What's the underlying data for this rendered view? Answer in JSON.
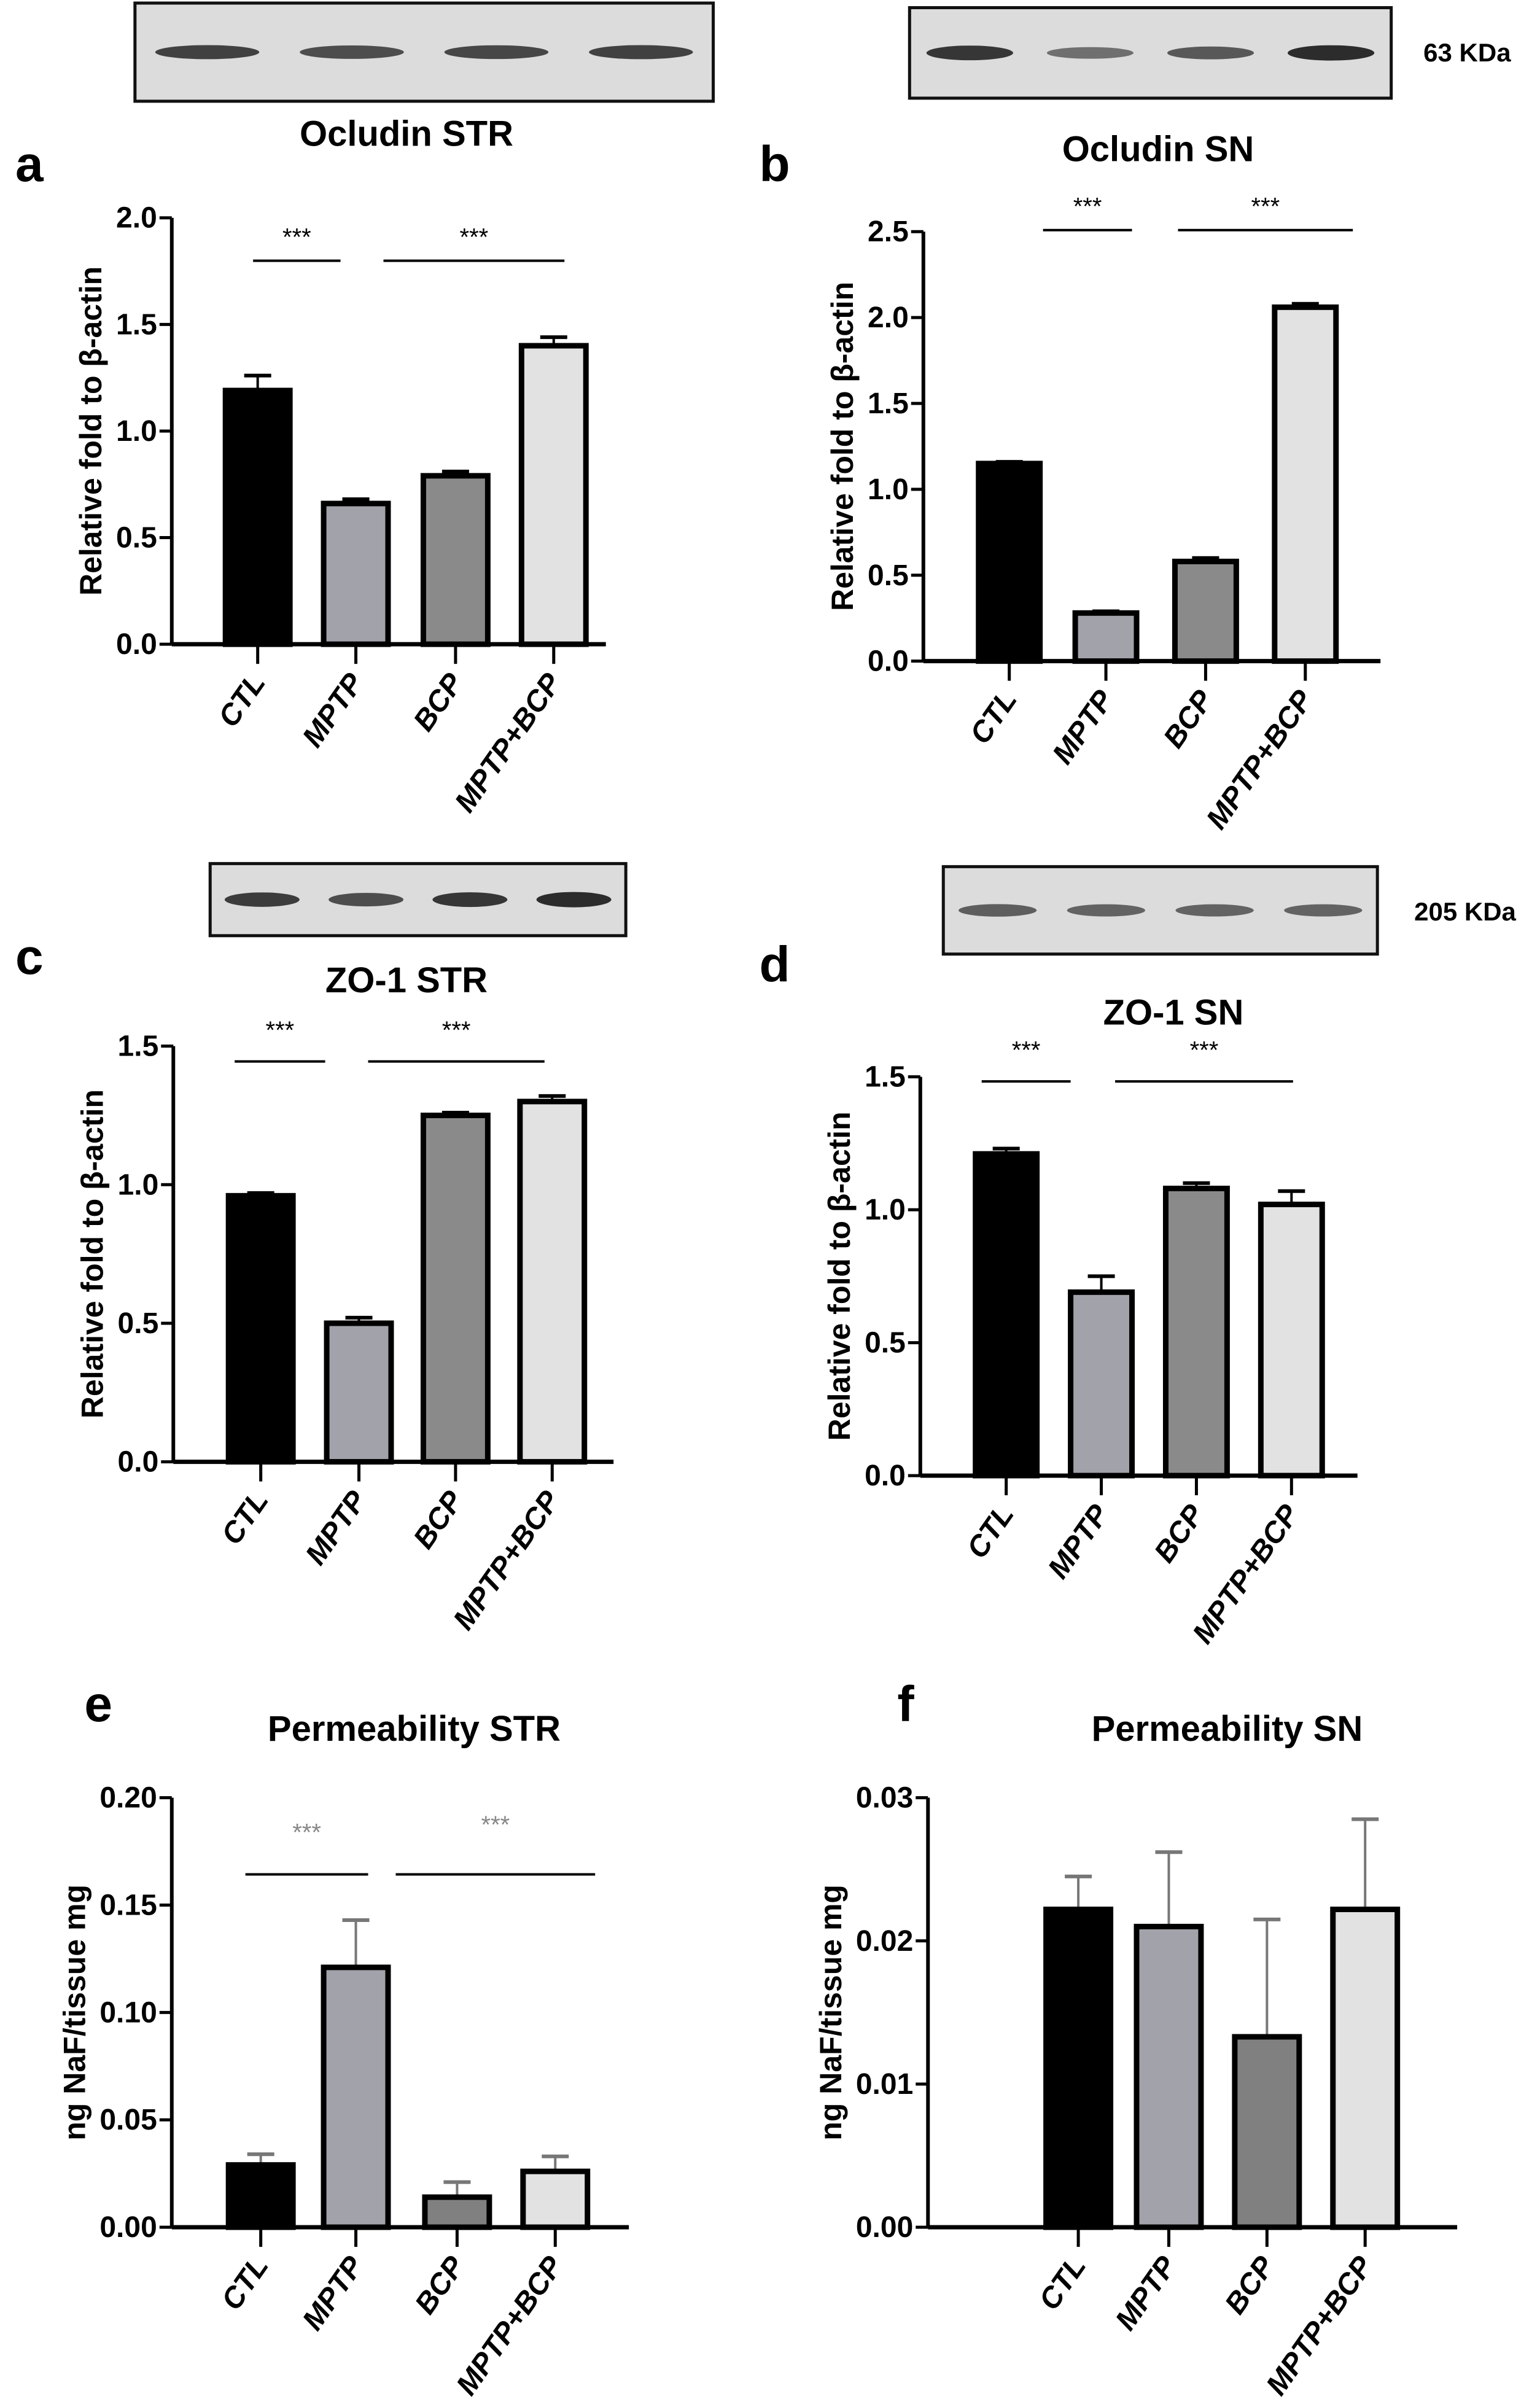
{
  "chart_data": [
    {
      "id": "a",
      "type": "bar",
      "panel_letter": "a",
      "title": "Ocludin STR",
      "ylabel": "Relative fold to β-actin",
      "categories": [
        "CTL",
        "MPTP",
        "BCP",
        "MPTP+BCP"
      ],
      "values": [
        1.19,
        0.66,
        0.79,
        1.4
      ],
      "errors": [
        0.07,
        0.02,
        0.02,
        0.04
      ],
      "ylim": [
        0,
        2.0
      ],
      "yticks": [
        "0.0",
        "0.5",
        "1.0",
        "1.5",
        "2.0"
      ],
      "significance": [
        {
          "label": "***",
          "compare": [
            "CTL",
            "MPTP"
          ]
        },
        {
          "label": "***",
          "compare": [
            "MPTP",
            "MPTP+BCP"
          ]
        }
      ],
      "blot": true,
      "blot_label": ""
    },
    {
      "id": "b",
      "type": "bar",
      "panel_letter": "b",
      "title": "Ocludin SN",
      "ylabel": "Relative fold to β-actin",
      "categories": [
        "CTL",
        "MPTP",
        "BCP",
        "MPTP+BCP"
      ],
      "values": [
        1.15,
        0.28,
        0.58,
        2.06
      ],
      "errors": [
        0.01,
        0.01,
        0.02,
        0.02
      ],
      "ylim": [
        0,
        2.5
      ],
      "yticks": [
        "0.0",
        "0.5",
        "1.0",
        "1.5",
        "2.0",
        "2.5"
      ],
      "significance": [
        {
          "label": "***",
          "compare": [
            "CTL",
            "MPTP"
          ]
        },
        {
          "label": "***",
          "compare": [
            "MPTP",
            "MPTP+BCP"
          ]
        }
      ],
      "blot": true,
      "blot_label": "63 KDa"
    },
    {
      "id": "c",
      "type": "bar",
      "panel_letter": "c",
      "title": "ZO-1 STR",
      "ylabel": "Relative fold to β-actin",
      "categories": [
        "CTL",
        "MPTP",
        "BCP",
        "MPTP+BCP"
      ],
      "values": [
        0.96,
        0.5,
        1.25,
        1.3
      ],
      "errors": [
        0.01,
        0.02,
        0.01,
        0.02
      ],
      "ylim": [
        0,
        1.5
      ],
      "yticks": [
        "0.0",
        "0.5",
        "1.0",
        "1.5"
      ],
      "significance": [
        {
          "label": "***",
          "compare": [
            "CTL",
            "MPTP"
          ]
        },
        {
          "label": "***",
          "compare": [
            "MPTP",
            "MPTP+BCP"
          ]
        }
      ],
      "blot": true,
      "blot_label": ""
    },
    {
      "id": "d",
      "type": "bar",
      "panel_letter": "d",
      "title": "ZO-1 SN",
      "ylabel": "Relative fold to β-actin",
      "categories": [
        "CTL",
        "MPTP",
        "BCP",
        "MPTP+BCP"
      ],
      "values": [
        1.21,
        0.69,
        1.08,
        1.02
      ],
      "errors": [
        0.02,
        0.06,
        0.02,
        0.05
      ],
      "ylim": [
        0,
        1.5
      ],
      "yticks": [
        "0.0",
        "0.5",
        "1.0",
        "1.5"
      ],
      "significance": [
        {
          "label": "***",
          "compare": [
            "CTL",
            "MPTP"
          ]
        },
        {
          "label": "***",
          "compare": [
            "MPTP",
            "MPTP+BCP"
          ]
        }
      ],
      "blot": true,
      "blot_label": "205 KDa"
    },
    {
      "id": "e",
      "type": "bar",
      "panel_letter": "e",
      "title": "Permeability STR",
      "ylabel": "ng NaF/tissue mg",
      "categories": [
        "CTL",
        "MPTP",
        "BCP",
        "MPTP+BCP"
      ],
      "values": [
        0.029,
        0.121,
        0.014,
        0.026
      ],
      "errors": [
        0.005,
        0.022,
        0.007,
        0.007
      ],
      "ylim": [
        0,
        0.2
      ],
      "yticks": [
        "0.00",
        "0.05",
        "0.10",
        "0.15",
        "0.20"
      ],
      "significance": [
        {
          "label": "***",
          "compare": [
            "CTL",
            "MPTP"
          ]
        },
        {
          "label": "***",
          "compare": [
            "MPTP",
            "MPTP+BCP"
          ]
        }
      ],
      "blot": false
    },
    {
      "id": "f",
      "type": "bar",
      "panel_letter": "f",
      "title": "Permeability SN",
      "ylabel": "ng NaF/tissue mg",
      "categories": [
        "CTL",
        "MPTP",
        "BCP",
        "MPTP+BCP"
      ],
      "values": [
        0.0222,
        0.021,
        0.0133,
        0.0222
      ],
      "errors": [
        0.0023,
        0.0052,
        0.0082,
        0.0063
      ],
      "ylim": [
        0,
        0.03
      ],
      "yticks": [
        "0.00",
        "0.01",
        "0.02",
        "0.03"
      ],
      "significance": [],
      "blot": false
    }
  ],
  "colors": {
    "CTL": "#000000",
    "MPTP": "#a2a2aa",
    "BCP": "#8a8a8a",
    "MPTP+BCP": "#e2e2e2"
  }
}
